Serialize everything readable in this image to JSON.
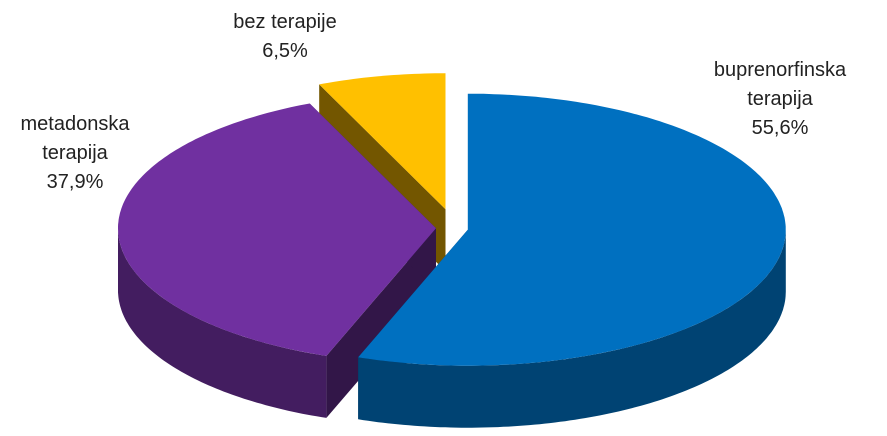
{
  "chart_data": {
    "type": "pie3d",
    "categories": [
      "buprenorfinska terapija",
      "metadonska terapija",
      "bez terapije"
    ],
    "values": [
      55.6,
      37.9,
      6.5
    ],
    "value_labels": [
      "55,6%",
      "37,9%",
      "6,5%"
    ],
    "colors": [
      "#0070c0",
      "#7030a0",
      "#ffc000"
    ]
  }
}
